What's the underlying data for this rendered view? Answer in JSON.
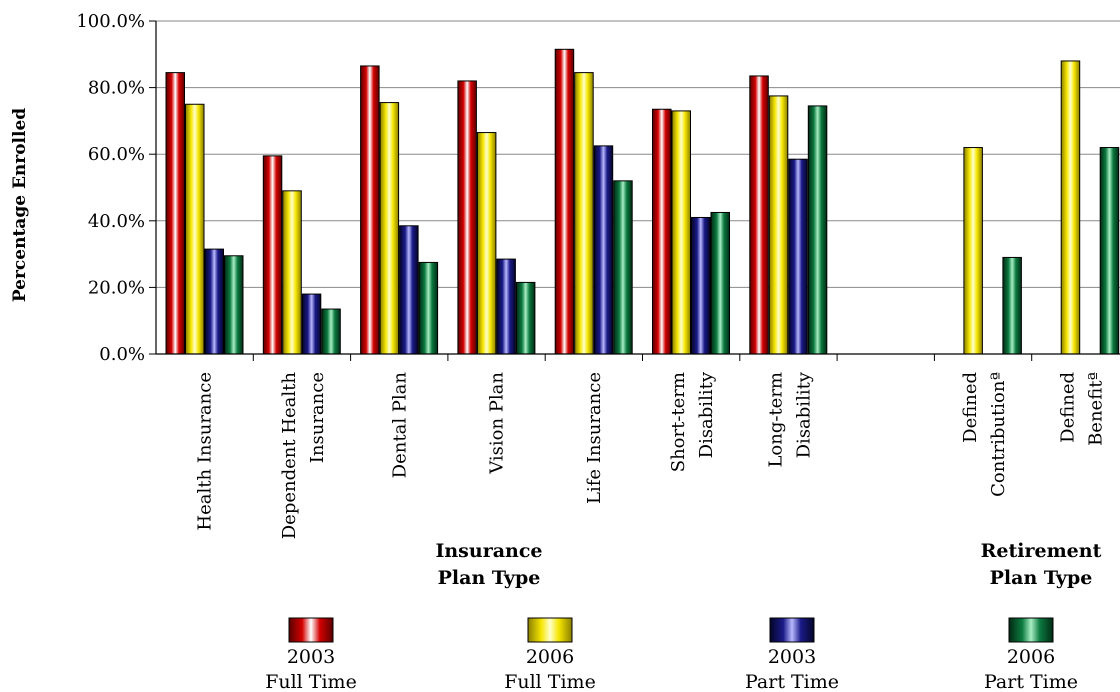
{
  "chart_data": {
    "type": "bar",
    "ylabel": "Percentage Enrolled",
    "ylim": [
      0,
      100
    ],
    "yticks": [
      "0.0%",
      "20.0%",
      "40.0%",
      "60.0%",
      "80.0%",
      "100.0%"
    ],
    "grid": true,
    "categories": [
      [
        "Health Insurance"
      ],
      [
        "Dependent Health",
        "Insurance"
      ],
      [
        "Dental Plan"
      ],
      [
        "Vision Plan"
      ],
      [
        "Life Insurance"
      ],
      [
        "Short-term",
        "Disability"
      ],
      [
        "Long-term",
        "Disability"
      ],
      [],
      [
        "Defined",
        "Contributionª"
      ],
      [
        "Defined",
        "Benefitª"
      ]
    ],
    "series": [
      {
        "name": "2003 Full Time",
        "year": "2003",
        "type": "Full Time",
        "color": "#c00000",
        "values": [
          84.5,
          59.5,
          86.5,
          82,
          91.5,
          73.5,
          83.5,
          null,
          null,
          null
        ]
      },
      {
        "name": "2006 Full Time",
        "year": "2006",
        "type": "Full Time",
        "color": "#f5e600",
        "values": [
          75,
          49,
          75.5,
          66.5,
          84.5,
          73,
          77.5,
          null,
          62,
          88
        ]
      },
      {
        "name": "2003 Part Time",
        "year": "2003",
        "type": "Part Time",
        "color": "#141470",
        "values": [
          31.5,
          18,
          38.5,
          28.5,
          62.5,
          41,
          58.5,
          null,
          null,
          null
        ]
      },
      {
        "name": "2006 Part Time",
        "year": "2006",
        "type": "Part Time",
        "color": "#0c6a3a",
        "values": [
          29.5,
          13.5,
          27.5,
          21.5,
          52,
          42.5,
          74.5,
          null,
          29,
          62
        ]
      }
    ],
    "group_labels": [
      {
        "lines": [
          "Insurance",
          "Plan Type"
        ]
      },
      {
        "lines": [
          "Retirement",
          "Plan Type"
        ]
      }
    ]
  }
}
